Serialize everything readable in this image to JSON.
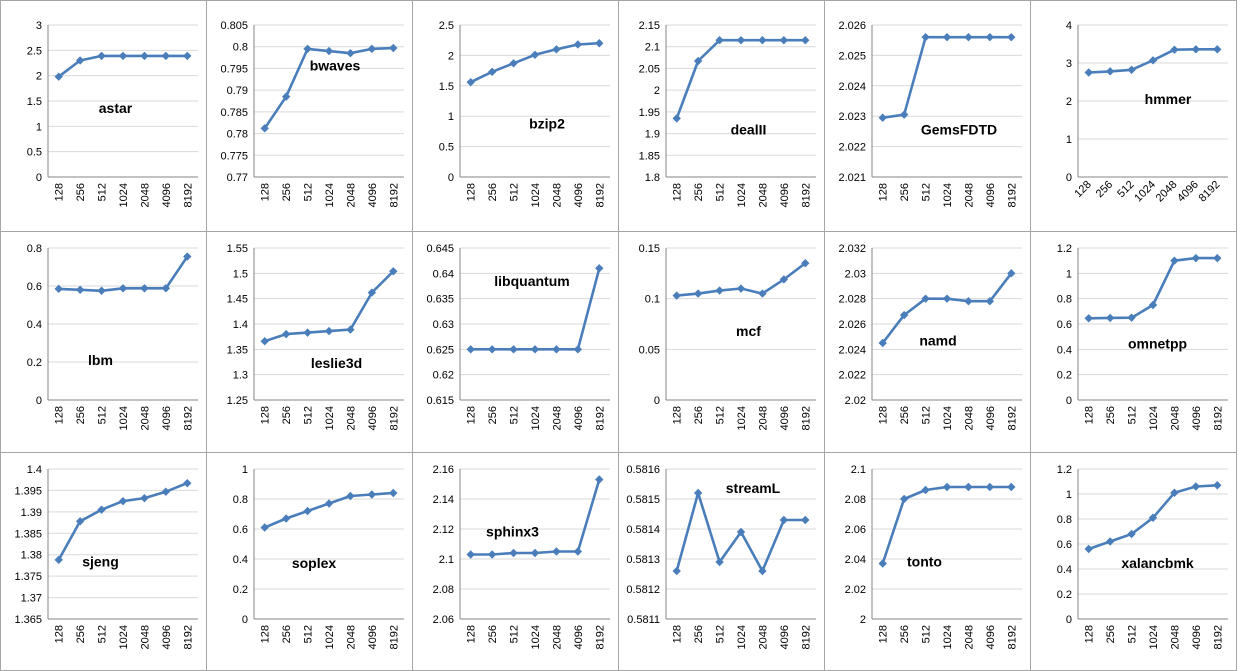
{
  "figure": {
    "series_color": "#4A7EBB",
    "grid_color": "#d9d9d9"
  },
  "chart_data": [
    {
      "type": "line",
      "title": "astar",
      "categories": [
        "128",
        "256",
        "512",
        "1024",
        "2048",
        "4096",
        "8192"
      ],
      "values": [
        1.98,
        2.3,
        2.39,
        2.39,
        2.39,
        2.39,
        2.39
      ],
      "ylim": [
        0,
        3
      ],
      "yticks": [
        "0",
        "0.5",
        "1",
        "1.5",
        "2",
        "2.5",
        "3"
      ],
      "xlabel_style": "vertical"
    },
    {
      "type": "line",
      "title": "bwaves",
      "categories": [
        "128",
        "256",
        "512",
        "1024",
        "2048",
        "4096",
        "8192"
      ],
      "values": [
        0.7812,
        0.7885,
        0.7995,
        0.799,
        0.7985,
        0.7995,
        0.7997
      ],
      "ylim": [
        0.77,
        0.805
      ],
      "yticks": [
        "0.77",
        "0.775",
        "0.78",
        "0.785",
        "0.79",
        "0.795",
        "0.8",
        "0.805"
      ],
      "xlabel_style": "vertical"
    },
    {
      "type": "line",
      "title": "bzip2",
      "categories": [
        "128",
        "256",
        "512",
        "1024",
        "2048",
        "4096",
        "8192"
      ],
      "values": [
        1.56,
        1.73,
        1.87,
        2.01,
        2.1,
        2.18,
        2.2
      ],
      "ylim": [
        0,
        2.5
      ],
      "yticks": [
        "0",
        "0.5",
        "1",
        "1.5",
        "2",
        "2.5"
      ],
      "xlabel_style": "vertical"
    },
    {
      "type": "line",
      "title": "dealII",
      "categories": [
        "128",
        "256",
        "512",
        "1024",
        "2048",
        "4096",
        "8192"
      ],
      "values": [
        1.935,
        2.067,
        2.115,
        2.115,
        2.115,
        2.115,
        2.115
      ],
      "ylim": [
        1.8,
        2.15
      ],
      "yticks": [
        "1.8",
        "1.85",
        "1.9",
        "1.95",
        "2",
        "2.05",
        "2.1",
        "2.15"
      ],
      "xlabel_style": "vertical"
    },
    {
      "type": "line",
      "title": "GemsFDTD",
      "categories": [
        "128",
        "256",
        "512",
        "1024",
        "2048",
        "4096",
        "8192"
      ],
      "values": [
        2.02295,
        2.02305,
        2.0256,
        2.0256,
        2.0256,
        2.0256,
        2.0256
      ],
      "ylim": [
        2.021,
        2.026
      ],
      "yticks": [
        "2.021",
        "2.022",
        "2.023",
        "2.024",
        "2.025",
        "2.026"
      ],
      "xlabel_style": "vertical"
    },
    {
      "type": "line",
      "title": "hmmer",
      "categories": [
        "128",
        "256",
        "512",
        "1024",
        "2048",
        "4096",
        "8192"
      ],
      "values": [
        2.75,
        2.78,
        2.82,
        3.07,
        3.35,
        3.36,
        3.36
      ],
      "ylim": [
        0,
        4
      ],
      "yticks": [
        "0",
        "1",
        "2",
        "3",
        "4"
      ],
      "xlabel_style": "diagonal"
    },
    {
      "type": "line",
      "title": "lbm",
      "categories": [
        "128",
        "256",
        "512",
        "1024",
        "2048",
        "4096",
        "8192"
      ],
      "values": [
        0.585,
        0.58,
        0.575,
        0.588,
        0.588,
        0.588,
        0.755
      ],
      "ylim": [
        0,
        0.8
      ],
      "yticks": [
        "0",
        "0.2",
        "0.4",
        "0.6",
        "0.8"
      ],
      "xlabel_style": "vertical"
    },
    {
      "type": "line",
      "title": "leslie3d",
      "categories": [
        "128",
        "256",
        "512",
        "1024",
        "2048",
        "4096",
        "8192"
      ],
      "values": [
        1.366,
        1.38,
        1.383,
        1.386,
        1.389,
        1.462,
        1.504
      ],
      "ylim": [
        1.25,
        1.55
      ],
      "yticks": [
        "1.25",
        "1.3",
        "1.35",
        "1.4",
        "1.45",
        "1.5",
        "1.55"
      ],
      "xlabel_style": "vertical"
    },
    {
      "type": "line",
      "title": "libquantum",
      "categories": [
        "128",
        "256",
        "512",
        "1024",
        "2048",
        "4096",
        "8192"
      ],
      "values": [
        0.625,
        0.625,
        0.625,
        0.625,
        0.625,
        0.625,
        0.641
      ],
      "ylim": [
        0.615,
        0.645
      ],
      "yticks": [
        "0.615",
        "0.62",
        "0.625",
        "0.63",
        "0.635",
        "0.64",
        "0.645"
      ],
      "xlabel_style": "vertical"
    },
    {
      "type": "line",
      "title": "mcf",
      "categories": [
        "128",
        "256",
        "512",
        "1024",
        "2048",
        "4096",
        "8192"
      ],
      "values": [
        0.103,
        0.105,
        0.108,
        0.11,
        0.105,
        0.119,
        0.135
      ],
      "ylim": [
        0,
        0.15
      ],
      "yticks": [
        "0",
        "0.05",
        "0.1",
        "0.15"
      ],
      "xlabel_style": "vertical"
    },
    {
      "type": "line",
      "title": "namd",
      "categories": [
        "128",
        "256",
        "512",
        "1024",
        "2048",
        "4096",
        "8192"
      ],
      "values": [
        2.0245,
        2.0267,
        2.028,
        2.028,
        2.0278,
        2.0278,
        2.03
      ],
      "ylim": [
        2.02,
        2.032
      ],
      "yticks": [
        "2.02",
        "2.022",
        "2.024",
        "2.026",
        "2.028",
        "2.03",
        "2.032"
      ],
      "xlabel_style": "vertical"
    },
    {
      "type": "line",
      "title": "omnetpp",
      "categories": [
        "128",
        "256",
        "512",
        "1024",
        "2048",
        "4096",
        "8192"
      ],
      "values": [
        0.645,
        0.648,
        0.65,
        0.75,
        1.1,
        1.12,
        1.12
      ],
      "ylim": [
        0,
        1.2
      ],
      "yticks": [
        "0",
        "0.2",
        "0.4",
        "0.6",
        "0.8",
        "1",
        "1.2"
      ],
      "xlabel_style": "vertical"
    },
    {
      "type": "line",
      "title": "sjeng",
      "categories": [
        "128",
        "256",
        "512",
        "1024",
        "2048",
        "4096",
        "8192"
      ],
      "values": [
        1.3788,
        1.3878,
        1.3905,
        1.3925,
        1.3932,
        1.3947,
        1.3967
      ],
      "ylim": [
        1.365,
        1.4
      ],
      "yticks": [
        "1.365",
        "1.37",
        "1.375",
        "1.38",
        "1.385",
        "1.39",
        "1.395",
        "1.4"
      ],
      "xlabel_style": "vertical"
    },
    {
      "type": "line",
      "title": "soplex",
      "categories": [
        "128",
        "256",
        "512",
        "1024",
        "2048",
        "4096",
        "8192"
      ],
      "values": [
        0.61,
        0.67,
        0.72,
        0.77,
        0.82,
        0.83,
        0.84
      ],
      "ylim": [
        0,
        1
      ],
      "yticks": [
        "0",
        "0.2",
        "0.4",
        "0.6",
        "0.8",
        "1"
      ],
      "xlabel_style": "vertical"
    },
    {
      "type": "line",
      "title": "sphinx3",
      "categories": [
        "128",
        "256",
        "512",
        "1024",
        "2048",
        "4096",
        "8192"
      ],
      "values": [
        2.103,
        2.103,
        2.104,
        2.104,
        2.105,
        2.105,
        2.153
      ],
      "ylim": [
        2.06,
        2.16
      ],
      "yticks": [
        "2.06",
        "2.08",
        "2.1",
        "2.12",
        "2.14",
        "2.16"
      ],
      "xlabel_style": "vertical"
    },
    {
      "type": "line",
      "title": "streamL",
      "categories": [
        "128",
        "256",
        "512",
        "1024",
        "2048",
        "4096",
        "8192"
      ],
      "values": [
        0.58126,
        0.58152,
        0.58129,
        0.58139,
        0.58126,
        0.58143,
        0.58143
      ],
      "ylim": [
        0.5811,
        0.5816
      ],
      "yticks": [
        "0.5811",
        "0.5812",
        "0.5813",
        "0.5814",
        "0.5815",
        "0.5816"
      ],
      "xlabel_style": "vertical"
    },
    {
      "type": "line",
      "title": "tonto",
      "categories": [
        "128",
        "256",
        "512",
        "1024",
        "2048",
        "4096",
        "8192"
      ],
      "values": [
        2.037,
        2.08,
        2.086,
        2.088,
        2.088,
        2.088,
        2.088
      ],
      "ylim": [
        2,
        2.1
      ],
      "yticks": [
        "2",
        "2.02",
        "2.04",
        "2.06",
        "2.08",
        "2.1"
      ],
      "xlabel_style": "vertical"
    },
    {
      "type": "line",
      "title": "xalancbmk",
      "categories": [
        "128",
        "256",
        "512",
        "1024",
        "2048",
        "4096",
        "8192"
      ],
      "values": [
        0.56,
        0.62,
        0.68,
        0.81,
        1.01,
        1.06,
        1.07
      ],
      "ylim": [
        0,
        1.2
      ],
      "yticks": [
        "0",
        "0.2",
        "0.4",
        "0.6",
        "0.8",
        "1",
        "1.2"
      ],
      "xlabel_style": "vertical"
    }
  ]
}
